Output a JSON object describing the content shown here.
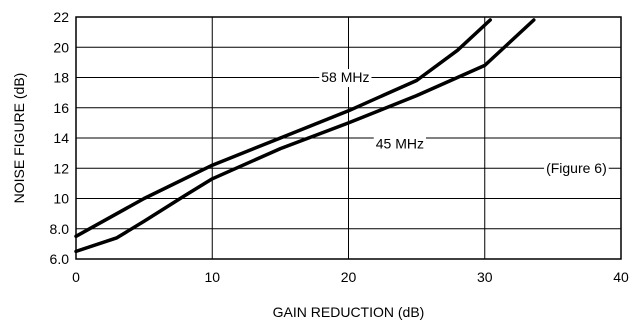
{
  "chart_data": {
    "type": "line",
    "title": "",
    "xlabel": "GAIN REDUCTION (dB)",
    "ylabel": "NOISE FIGURE (dB)",
    "xlim": [
      0,
      40
    ],
    "ylim": [
      6,
      22
    ],
    "x_ticks": [
      0,
      10,
      20,
      30,
      40
    ],
    "x_tick_labels": [
      "0",
      "10",
      "20",
      "30",
      "40"
    ],
    "y_ticks": [
      6,
      8,
      10,
      12,
      14,
      16,
      18,
      20,
      22
    ],
    "y_tick_labels": [
      "6.0",
      "8.0",
      "10",
      "12",
      "14",
      "16",
      "18",
      "20",
      "22"
    ],
    "grid": true,
    "series": [
      {
        "name": "58 MHz",
        "x": [
          0,
          5,
          10,
          15,
          20,
          25,
          28,
          30.4
        ],
        "y": [
          7.5,
          10.0,
          12.2,
          14.0,
          15.8,
          17.8,
          19.8,
          21.8
        ]
      },
      {
        "name": "45 MHz",
        "x": [
          0,
          3,
          5,
          8,
          10,
          15,
          20,
          25,
          30,
          33.6
        ],
        "y": [
          6.5,
          7.4,
          8.5,
          10.2,
          11.3,
          13.3,
          15.0,
          16.8,
          18.8,
          21.8
        ]
      }
    ],
    "annotations": [
      {
        "text": "58 MHz",
        "x": 18,
        "y": 17.7
      },
      {
        "text": "45 MHz",
        "x": 22,
        "y": 13.3
      },
      {
        "text": "(Figure 6)",
        "x": 34.5,
        "y": 11.7
      }
    ]
  }
}
